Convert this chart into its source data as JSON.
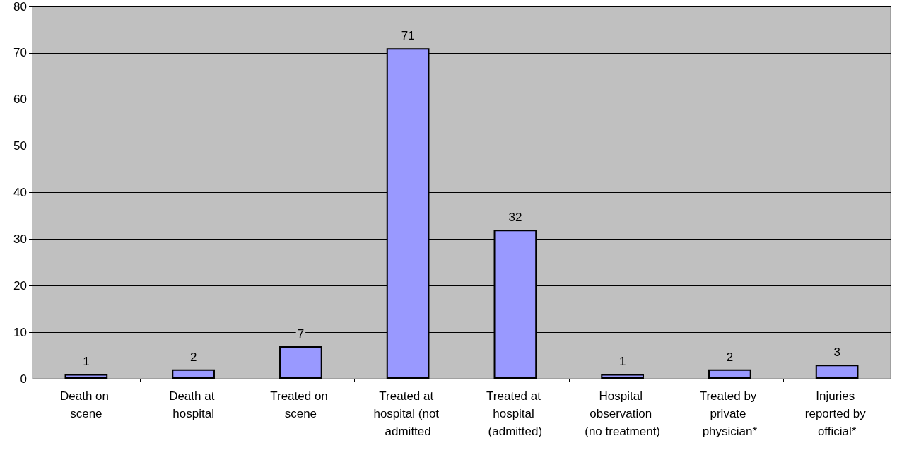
{
  "chart_data": {
    "type": "bar",
    "categories": [
      "Death on scene",
      "Death at hospital",
      "Treated on scene",
      "Treated at hospital (not admitted",
      "Treated at hospital (admitted)",
      "Hospital observation (no treatment)",
      "Treated by private physician*",
      "Injuries reported by official*"
    ],
    "values": [
      1,
      2,
      7,
      71,
      32,
      1,
      2,
      3
    ],
    "color": "#9999ff",
    "ylim": [
      0,
      80
    ],
    "yticks": [
      0,
      10,
      20,
      30,
      40,
      50,
      60,
      70,
      80
    ],
    "grid": "y",
    "data_labels": true
  }
}
